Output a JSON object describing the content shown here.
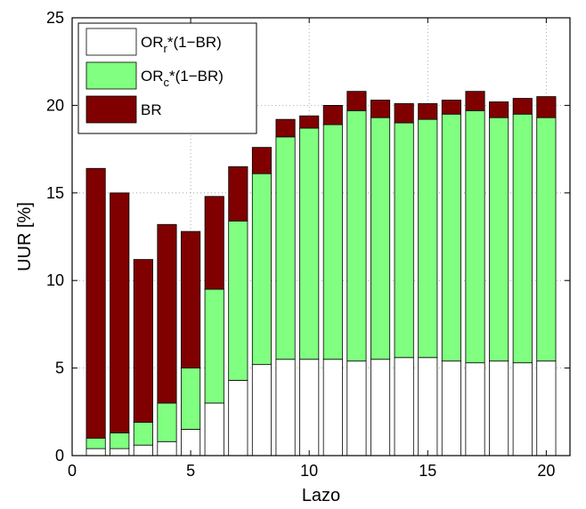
{
  "chart_data": {
    "type": "bar",
    "stacked": true,
    "xlabel": "Lazo",
    "ylabel": "UUR [%]",
    "xlim": [
      0,
      21
    ],
    "ylim": [
      0,
      25
    ],
    "xticks": [
      0,
      5,
      10,
      15,
      20
    ],
    "yticks": [
      0,
      5,
      10,
      15,
      20,
      25
    ],
    "grid": true,
    "legend_position": "top-left",
    "categories": [
      1,
      2,
      3,
      4,
      5,
      6,
      7,
      8,
      9,
      10,
      11,
      12,
      13,
      14,
      15,
      16,
      17,
      18,
      19,
      20
    ],
    "series": [
      {
        "name": "OR_r*(1−BR)",
        "legend": {
          "base": "OR",
          "sub": "r",
          "rest": "*(1−BR)"
        },
        "color": "#ffffff",
        "values": [
          0.4,
          0.4,
          0.6,
          0.8,
          1.5,
          3.0,
          4.3,
          5.2,
          5.5,
          5.5,
          5.5,
          5.4,
          5.5,
          5.6,
          5.6,
          5.4,
          5.3,
          5.4,
          5.3,
          5.4
        ]
      },
      {
        "name": "OR_c*(1−BR)",
        "legend": {
          "base": "OR",
          "sub": "c",
          "rest": "*(1−BR)"
        },
        "color": "#80ff80",
        "values": [
          0.6,
          0.9,
          1.3,
          2.2,
          3.5,
          6.5,
          9.1,
          10.9,
          12.7,
          13.2,
          13.4,
          14.3,
          13.8,
          13.4,
          13.6,
          14.1,
          14.4,
          13.9,
          14.2,
          13.9
        ]
      },
      {
        "name": "BR",
        "legend": {
          "base": "BR",
          "sub": "",
          "rest": ""
        },
        "color": "#800000",
        "values": [
          15.4,
          13.7,
          9.3,
          10.2,
          7.8,
          5.3,
          3.1,
          1.5,
          1.0,
          0.7,
          1.1,
          1.1,
          1.0,
          1.1,
          0.9,
          0.8,
          1.1,
          0.9,
          0.9,
          1.2
        ]
      }
    ]
  }
}
